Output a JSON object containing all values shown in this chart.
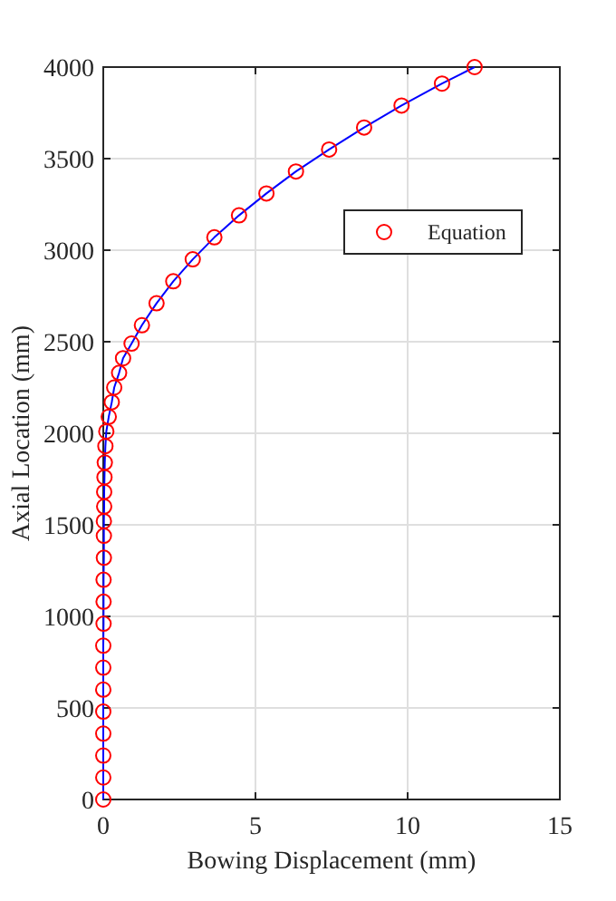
{
  "chart_data": {
    "type": "line",
    "xlabel": "Bowing Displacement (mm)",
    "ylabel": "Axial Location (mm)",
    "xlim": [
      0,
      15
    ],
    "xticks": [
      0,
      5,
      10,
      15
    ],
    "ylim": [
      0,
      4000
    ],
    "yticks": [
      0,
      500,
      1000,
      1500,
      2000,
      2500,
      3000,
      3500,
      4000
    ],
    "grid": true,
    "legend": "right",
    "series": [
      {
        "color": "#0000ff",
        "marker": "none",
        "x": [
          0,
          0,
          0,
          0,
          0,
          0,
          0,
          0,
          0.01,
          0.01,
          0.01,
          0.02,
          0.02,
          0.02,
          0.03,
          0.03,
          0.04,
          0.05,
          0.07,
          0.1,
          0.18,
          0.28,
          0.36,
          0.52,
          0.65,
          0.93,
          1.27,
          1.75,
          2.3,
          2.94,
          3.65,
          4.46,
          5.36,
          6.33,
          7.42,
          8.57,
          9.8,
          11.13,
          12.2
        ],
        "values": [
          0,
          120,
          240,
          360,
          480,
          600,
          720,
          840,
          960,
          1080,
          1200,
          1320,
          1440,
          1520,
          1600,
          1680,
          1760,
          1840,
          1930,
          2010,
          2090,
          2170,
          2250,
          2330,
          2410,
          2490,
          2590,
          2710,
          2830,
          2950,
          3070,
          3190,
          3310,
          3430,
          3550,
          3670,
          3790,
          3910,
          4000
        ]
      },
      {
        "type": "scatter",
        "name": "Equation",
        "color": "#ff0000",
        "marker": "circle",
        "x": [
          0,
          0,
          0,
          0,
          0,
          0,
          0,
          0,
          0.01,
          0.01,
          0.01,
          0.02,
          0.02,
          0.02,
          0.03,
          0.03,
          0.04,
          0.05,
          0.07,
          0.1,
          0.18,
          0.28,
          0.36,
          0.52,
          0.65,
          0.93,
          1.27,
          1.75,
          2.3,
          2.94,
          3.65,
          4.46,
          5.36,
          6.33,
          7.42,
          8.57,
          9.8,
          11.13,
          12.2
        ],
        "values": [
          0,
          120,
          240,
          360,
          480,
          600,
          720,
          840,
          960,
          1080,
          1200,
          1320,
          1440,
          1520,
          1600,
          1680,
          1760,
          1840,
          1930,
          2010,
          2090,
          2170,
          2250,
          2330,
          2410,
          2490,
          2590,
          2710,
          2830,
          2950,
          3070,
          3190,
          3310,
          3430,
          3550,
          3670,
          3790,
          3910,
          4000
        ]
      }
    ]
  }
}
